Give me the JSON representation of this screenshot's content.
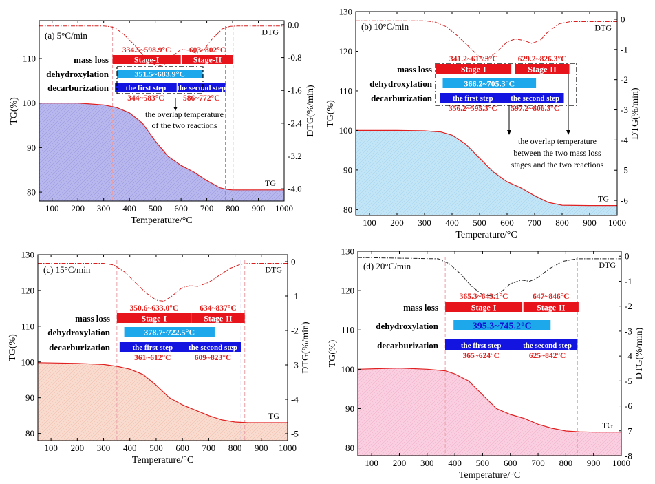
{
  "chart_data": [
    {
      "id": "a",
      "type": "line",
      "panel_label": "(a) 5°C/min",
      "xlabel": "Temperature/°C",
      "ylabel_left": "TG(%)",
      "ylabel_right": "DTG(%/min)",
      "xlim": [
        50,
        1000
      ],
      "ylim_left": [
        78,
        118.5
      ],
      "ylim_right": [
        -4.3,
        0.1
      ],
      "x_ticks": [
        100,
        200,
        300,
        400,
        500,
        600,
        700,
        800,
        900,
        1000
      ],
      "y_ticks_left": [
        80,
        90,
        100,
        110
      ],
      "y_ticks_right": [
        -4.0,
        -3.2,
        -2.4,
        -1.6,
        -0.8,
        0.0
      ],
      "right_tick_format": "fixed1",
      "fill_color": "#b8b8ee",
      "dtg_color": "#d62020",
      "series": [
        {
          "name": "TG",
          "label": "TG",
          "x": [
            50,
            200,
            300,
            350,
            400,
            450,
            500,
            550,
            600,
            650,
            700,
            750,
            780,
            800,
            900,
            1000
          ],
          "y": [
            100.0,
            100.0,
            99.6,
            99.0,
            97.8,
            95.5,
            91.5,
            88.0,
            86.0,
            84.5,
            82.6,
            81.0,
            80.6,
            80.5,
            80.5,
            80.5
          ]
        },
        {
          "name": "DTG",
          "label": "DTG",
          "x": [
            50,
            300,
            330,
            350,
            380,
            420,
            460,
            500,
            520,
            540,
            570,
            600,
            630,
            660,
            690,
            720,
            760,
            790,
            820,
            1000
          ],
          "y": [
            -0.03,
            -0.03,
            -0.05,
            -0.1,
            -0.25,
            -0.5,
            -0.8,
            -0.98,
            -1.0,
            -0.95,
            -0.75,
            -0.6,
            -0.62,
            -0.7,
            -0.6,
            -0.35,
            -0.1,
            -0.04,
            -0.03,
            -0.03
          ]
        }
      ],
      "bars": [
        {
          "name": "mass loss",
          "stage_I": {
            "label": "Stage-I",
            "range": [
              334.5,
              598.9
            ],
            "range_text": "334.5~598.9°C"
          },
          "stage_II": {
            "label": "Stage-II",
            "range": [
              603,
              802
            ],
            "range_text": "603~802°C"
          }
        },
        {
          "name": "dehydroxylation",
          "range": [
            351.5,
            683.9
          ],
          "range_text": "351.5~683.9°C"
        },
        {
          "name": "decarburization",
          "step1": {
            "label": "the first step",
            "range": [
              344,
              583
            ],
            "range_text": "344~583°C"
          },
          "step2": {
            "label": "the second step",
            "range": [
              586,
              772
            ],
            "range_text": "586~772°C"
          }
        }
      ],
      "dashed_lines": [
        334.5,
        772,
        802
      ],
      "annotation": "the overlap temperature of the two reactions"
    },
    {
      "id": "b",
      "type": "line",
      "panel_label": "(b) 10°C/min",
      "xlabel": "Temperature/°C",
      "ylabel_left": "TG(%)",
      "ylabel_right": "DTG(%/min)",
      "xlim": [
        50,
        1000
      ],
      "ylim_left": [
        78.5,
        130
      ],
      "ylim_right": [
        -6.5,
        0.25
      ],
      "x_ticks": [
        100,
        200,
        300,
        400,
        500,
        600,
        700,
        800,
        900,
        1000
      ],
      "y_ticks_left": [
        80,
        90,
        100,
        110,
        120,
        130
      ],
      "y_ticks_right": [
        -6,
        -5,
        -4,
        -3,
        -2,
        -1,
        0
      ],
      "right_tick_format": "int",
      "fill_color": "#bfe3f5",
      "dtg_color": "#d62020",
      "series": [
        {
          "name": "TG",
          "label": "TG",
          "x": [
            50,
            200,
            300,
            360,
            400,
            450,
            500,
            550,
            600,
            650,
            700,
            750,
            800,
            900,
            1000
          ],
          "y": [
            100.0,
            100.0,
            99.9,
            99.6,
            98.8,
            96.5,
            93.0,
            89.5,
            87.0,
            85.5,
            83.5,
            81.8,
            81.1,
            81.0,
            81.0
          ]
        },
        {
          "name": "DTG",
          "label": "DTG",
          "x": [
            50,
            300,
            340,
            380,
            420,
            460,
            500,
            530,
            560,
            600,
            630,
            660,
            690,
            720,
            750,
            790,
            830,
            1000
          ],
          "y": [
            -0.05,
            -0.05,
            -0.1,
            -0.25,
            -0.55,
            -0.9,
            -1.25,
            -1.3,
            -1.1,
            -0.75,
            -0.65,
            -0.7,
            -0.8,
            -0.7,
            -0.4,
            -0.15,
            -0.08,
            -0.08
          ]
        }
      ],
      "bars": [
        {
          "name": "mass loss",
          "stage_I": {
            "label": "Stage-I",
            "range": [
              341.2,
              615.3
            ],
            "range_text": "341.2~615.3°C"
          },
          "stage_II": {
            "label": "Stage-II",
            "range": [
              629.2,
              826.3
            ],
            "range_text": "629.2~826.3°C"
          }
        },
        {
          "name": "dehydroxylation",
          "range": [
            366.2,
            705.3
          ],
          "range_text": "366.2~705.3°C"
        },
        {
          "name": "decarburization",
          "step1": {
            "label": "the first step",
            "range": [
              356.2,
              595.3
            ],
            "range_text": "356.2~595.3°C"
          },
          "step2": {
            "label": "the second step",
            "range": [
              597.2,
              806.3
            ],
            "range_text": "597.2~806.3°C"
          }
        }
      ],
      "dashed_lines": [],
      "annotation": "the overlap temperature between the two mass loss stages and the two reactions"
    },
    {
      "id": "c",
      "type": "line",
      "panel_label": "(c) 15°C/min",
      "xlabel": "Temperature/°C",
      "ylabel_left": "TG(%)",
      "ylabel_right": "DTG(%/min)",
      "xlim": [
        50,
        1000
      ],
      "ylim_left": [
        78,
        130
      ],
      "ylim_right": [
        -5.2,
        0.2
      ],
      "x_ticks": [
        100,
        200,
        300,
        400,
        500,
        600,
        700,
        800,
        900,
        1000
      ],
      "y_ticks_left": [
        80,
        90,
        100,
        110,
        120,
        130
      ],
      "y_ticks_right": [
        -5,
        -4,
        -3,
        -2,
        -1,
        0
      ],
      "right_tick_format": "int",
      "fill_color": "#f7d2c4",
      "dtg_color": "#d62020",
      "series": [
        {
          "name": "TG",
          "label": "TG",
          "x": [
            50,
            200,
            300,
            350,
            400,
            450,
            500,
            550,
            600,
            650,
            700,
            750,
            800,
            850,
            900,
            1000
          ],
          "y": [
            99.8,
            99.6,
            99.3,
            98.8,
            98.0,
            96.5,
            93.5,
            90.0,
            88.0,
            86.5,
            85.0,
            83.8,
            83.2,
            83.0,
            83.0,
            83.0
          ]
        },
        {
          "name": "DTG",
          "label": "DTG",
          "x": [
            50,
            300,
            340,
            380,
            420,
            460,
            500,
            530,
            560,
            600,
            630,
            660,
            700,
            740,
            780,
            820,
            860,
            1000
          ],
          "y": [
            -0.05,
            -0.05,
            -0.1,
            -0.3,
            -0.6,
            -0.9,
            -1.12,
            -1.15,
            -1.0,
            -0.75,
            -0.7,
            -0.72,
            -0.6,
            -0.4,
            -0.2,
            -0.08,
            -0.05,
            -0.05
          ]
        }
      ],
      "bars": [
        {
          "name": "mass loss",
          "stage_I": {
            "label": "Stage-I",
            "range": [
              350.6,
              633.0
            ],
            "range_text": "350.6~633.0°C"
          },
          "stage_II": {
            "label": "Stage-II",
            "range": [
              634,
              837
            ],
            "range_text": "634~837°C"
          }
        },
        {
          "name": "dehydroxylation",
          "range": [
            378.7,
            722.5
          ],
          "range_text": "378.7~722.5°C"
        },
        {
          "name": "decarburization",
          "step1": {
            "label": "the first step",
            "range": [
              361,
              612
            ],
            "range_text": "361~612°C"
          },
          "step2": {
            "label": "the second step",
            "range": [
              609,
              823
            ],
            "range_text": "609~823°C"
          }
        }
      ],
      "dashed_lines": [
        350.6,
        823,
        837
      ],
      "annotation": ""
    },
    {
      "id": "d",
      "type": "line",
      "panel_label": "(d) 20°C/min",
      "xlabel": "Temperature/°C",
      "ylabel_left": "TG(%)",
      "ylabel_right": "DTG(%/min)",
      "xlim": [
        50,
        1000
      ],
      "ylim_left": [
        78,
        130
      ],
      "ylim_right": [
        -8,
        0.2
      ],
      "x_ticks": [
        100,
        200,
        300,
        400,
        500,
        600,
        700,
        800,
        900,
        1000
      ],
      "y_ticks_left": [
        80,
        90,
        100,
        110,
        120,
        130
      ],
      "y_ticks_right": [
        -8,
        -7,
        -6,
        -5,
        -4,
        -3,
        -2,
        -1,
        0
      ],
      "right_tick_format": "int",
      "fill_color": "#f9c8dc",
      "dtg_color": "#222222",
      "series": [
        {
          "name": "TG",
          "label": "TG",
          "x": [
            50,
            200,
            300,
            365,
            400,
            450,
            500,
            550,
            600,
            650,
            700,
            750,
            800,
            850,
            900,
            1000
          ],
          "y": [
            100.0,
            100.3,
            100.0,
            99.6,
            98.8,
            97.0,
            93.5,
            90.0,
            88.5,
            87.5,
            86.0,
            85.0,
            84.3,
            84.1,
            84.0,
            84.0
          ]
        },
        {
          "name": "DTG",
          "label": "DTG",
          "x": [
            50,
            340,
            380,
            420,
            460,
            500,
            540,
            570,
            600,
            640,
            670,
            700,
            740,
            790,
            840,
            1000
          ],
          "y": [
            -0.05,
            -0.1,
            -0.3,
            -0.7,
            -1.2,
            -1.55,
            -1.6,
            -1.4,
            -1.1,
            -0.95,
            -1.0,
            -0.85,
            -0.5,
            -0.2,
            -0.1,
            -0.1
          ]
        }
      ],
      "bars": [
        {
          "name": "mass loss",
          "stage_I": {
            "label": "Stage-I",
            "range": [
              365.3,
              643.1
            ],
            "range_text": "365.3~643.1°C"
          },
          "stage_II": {
            "label": "Stage-II",
            "range": [
              647,
              846
            ],
            "range_text": "647~846°C"
          }
        },
        {
          "name": "dehydroxylation",
          "range": [
            395.3,
            745.2
          ],
          "range_text": "395.3~745.2°C"
        },
        {
          "name": "decarburization",
          "step1": {
            "label": "the first step",
            "range": [
              365,
              624
            ],
            "range_text": "365~624°C"
          },
          "step2": {
            "label": "the second step",
            "range": [
              625,
              842
            ],
            "range_text": "625~842°C"
          }
        }
      ],
      "dashed_lines": [
        365.3,
        842
      ],
      "annotation": ""
    }
  ]
}
